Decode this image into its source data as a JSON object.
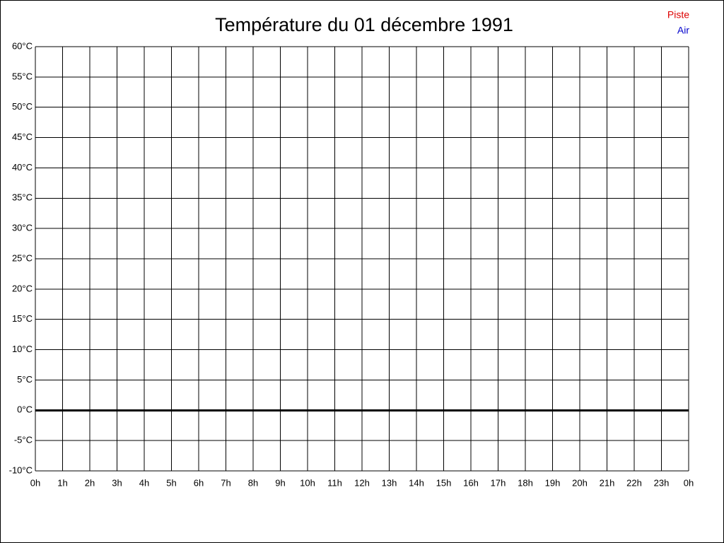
{
  "chart_data": {
    "type": "line",
    "title": "Température du 01 décembre 1991",
    "series": [
      {
        "name": "Piste",
        "color": "#dd0000",
        "values": []
      },
      {
        "name": "Air",
        "color": "#0000cc",
        "values": []
      }
    ],
    "xlim": [
      0,
      24
    ],
    "xticks": [
      {
        "value": 0,
        "label": "0h"
      },
      {
        "value": 1,
        "label": "1h"
      },
      {
        "value": 2,
        "label": "2h"
      },
      {
        "value": 3,
        "label": "3h"
      },
      {
        "value": 4,
        "label": "4h"
      },
      {
        "value": 5,
        "label": "5h"
      },
      {
        "value": 6,
        "label": "6h"
      },
      {
        "value": 7,
        "label": "7h"
      },
      {
        "value": 8,
        "label": "8h"
      },
      {
        "value": 9,
        "label": "9h"
      },
      {
        "value": 10,
        "label": "10h"
      },
      {
        "value": 11,
        "label": "11h"
      },
      {
        "value": 12,
        "label": "12h"
      },
      {
        "value": 13,
        "label": "13h"
      },
      {
        "value": 14,
        "label": "14h"
      },
      {
        "value": 15,
        "label": "15h"
      },
      {
        "value": 16,
        "label": "16h"
      },
      {
        "value": 17,
        "label": "17h"
      },
      {
        "value": 18,
        "label": "18h"
      },
      {
        "value": 19,
        "label": "19h"
      },
      {
        "value": 20,
        "label": "20h"
      },
      {
        "value": 21,
        "label": "21h"
      },
      {
        "value": 22,
        "label": "22h"
      },
      {
        "value": 23,
        "label": "23h"
      },
      {
        "value": 24,
        "label": "0h"
      }
    ],
    "ylim": [
      -10,
      60
    ],
    "yticks": [
      {
        "value": -10,
        "label": "-10°C"
      },
      {
        "value": -5,
        "label": "-5°C"
      },
      {
        "value": 0,
        "label": "0°C"
      },
      {
        "value": 5,
        "label": "5°C"
      },
      {
        "value": 10,
        "label": "10°C"
      },
      {
        "value": 15,
        "label": "15°C"
      },
      {
        "value": 20,
        "label": "20°C"
      },
      {
        "value": 25,
        "label": "25°C"
      },
      {
        "value": 30,
        "label": "30°C"
      },
      {
        "value": 35,
        "label": "35°C"
      },
      {
        "value": 40,
        "label": "40°C"
      },
      {
        "value": 45,
        "label": "45°C"
      },
      {
        "value": 50,
        "label": "50°C"
      },
      {
        "value": 55,
        "label": "55°C"
      },
      {
        "value": 60,
        "label": "60°C"
      }
    ],
    "grid": true,
    "legend": "top-right"
  }
}
